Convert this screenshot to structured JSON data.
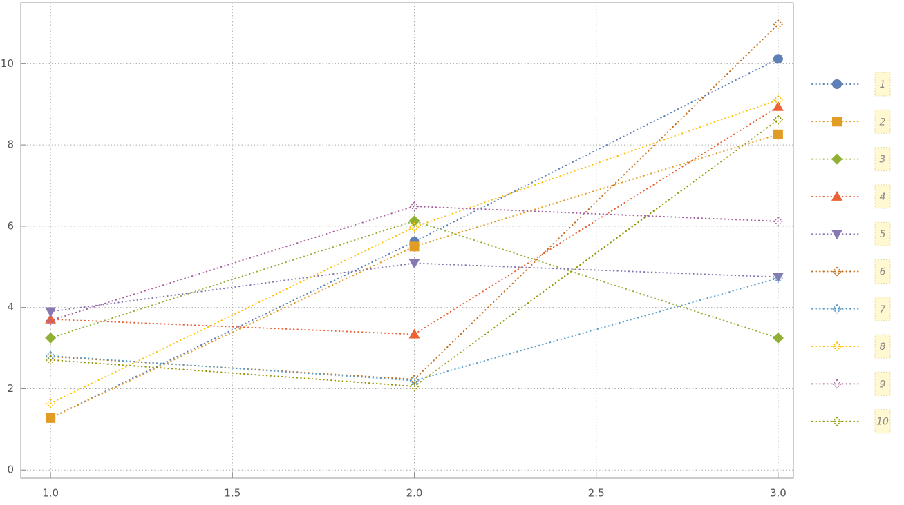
{
  "chart_data": {
    "type": "line",
    "x": [
      1,
      2,
      3
    ],
    "series": [
      {
        "name": "1",
        "color": "#5e81b5",
        "marker": "circle",
        "values": [
          1.28,
          5.62,
          10.12
        ]
      },
      {
        "name": "2",
        "color": "#e19c24",
        "marker": "square",
        "values": [
          1.28,
          5.5,
          8.26
        ]
      },
      {
        "name": "3",
        "color": "#8fb032",
        "marker": "diamond",
        "values": [
          3.25,
          6.13,
          3.25
        ]
      },
      {
        "name": "4",
        "color": "#eb6235",
        "marker": "triangle",
        "values": [
          3.71,
          3.34,
          8.94
        ]
      },
      {
        "name": "5",
        "color": "#8778b3",
        "marker": "down-triangle",
        "values": [
          3.9,
          5.09,
          4.75
        ]
      },
      {
        "name": "6",
        "color": "#c56e1a",
        "marker": "open",
        "values": [
          2.79,
          2.23,
          10.97
        ]
      },
      {
        "name": "7",
        "color": "#5d9ec7",
        "marker": "open",
        "values": [
          2.81,
          2.2,
          4.72
        ]
      },
      {
        "name": "8",
        "color": "#ffbf00",
        "marker": "open",
        "values": [
          1.64,
          5.98,
          9.11
        ]
      },
      {
        "name": "9",
        "color": "#a5609d",
        "marker": "open",
        "values": [
          3.68,
          6.49,
          6.12
        ]
      },
      {
        "name": "10",
        "color": "#929600",
        "marker": "open",
        "values": [
          2.71,
          2.06,
          8.62
        ]
      }
    ],
    "xlim": [
      0.918,
      3.042
    ],
    "ylim": [
      -0.2,
      11.5
    ],
    "xticks": [
      {
        "value": 1,
        "label": "1.0"
      },
      1.5,
      {
        "value": 2,
        "label": "2.0"
      },
      2.5,
      {
        "value": 3,
        "label": "3.0"
      }
    ],
    "yticks": [
      0,
      2,
      4,
      6,
      8,
      10
    ],
    "grid": true,
    "legend": "right"
  }
}
